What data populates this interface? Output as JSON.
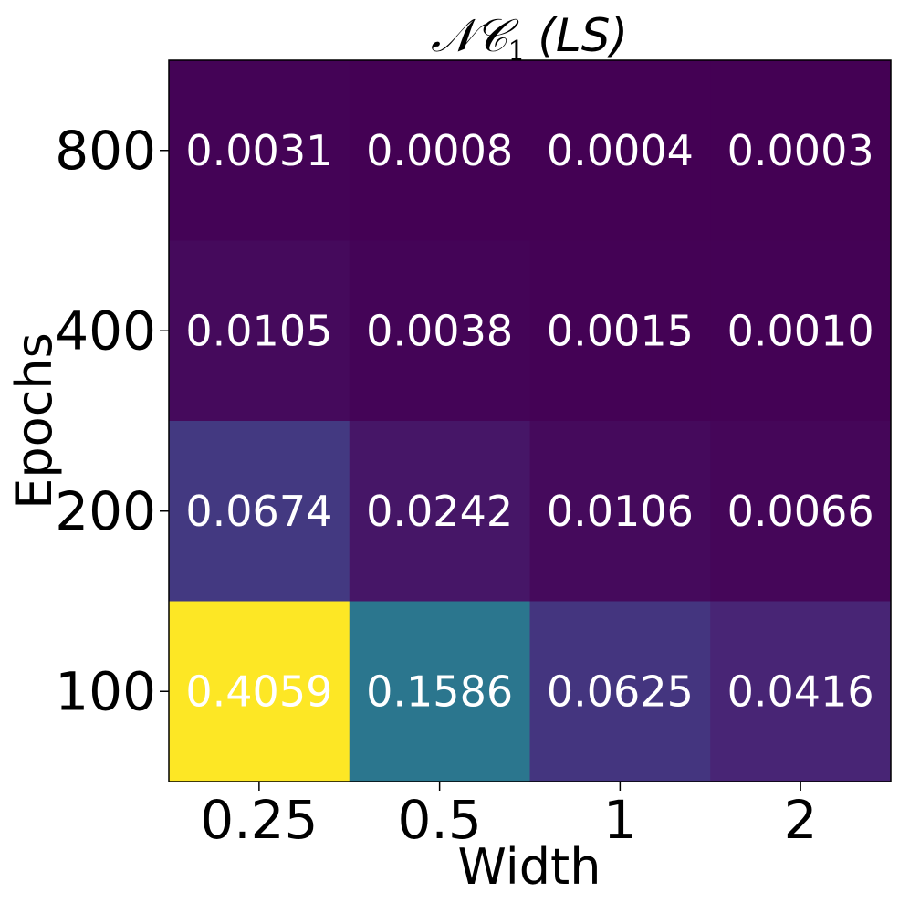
{
  "chart_data": {
    "type": "heatmap",
    "title": {
      "main": "𝒩𝒞",
      "subscript": "1",
      "suffix": "(LS)"
    },
    "xlabel": "Width",
    "ylabel": "Epochs",
    "x_categories": [
      "0.25",
      "0.5",
      "1",
      "2"
    ],
    "y_categories": [
      "800",
      "400",
      "200",
      "100"
    ],
    "values": [
      [
        0.0031,
        0.0008,
        0.0004,
        0.0003
      ],
      [
        0.0105,
        0.0038,
        0.0015,
        0.001
      ],
      [
        0.0674,
        0.0242,
        0.0106,
        0.0066
      ],
      [
        0.4059,
        0.1586,
        0.0625,
        0.0416
      ]
    ],
    "value_labels": [
      [
        "0.0031",
        "0.0008",
        "0.0004",
        "0.0003"
      ],
      [
        "0.0105",
        "0.0038",
        "0.0015",
        "0.0010"
      ],
      [
        "0.0674",
        "0.0242",
        "0.0106",
        "0.0066"
      ],
      [
        "0.4059",
        "0.1586",
        "0.0625",
        "0.0416"
      ]
    ],
    "colormap": "viridis",
    "label_color": "#ffffff",
    "axis_color": "#000000"
  }
}
